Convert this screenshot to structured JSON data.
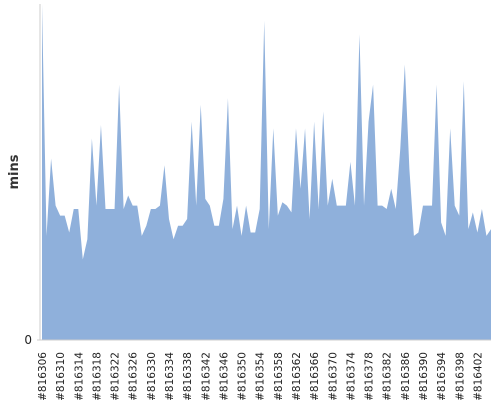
{
  "chart_data": {
    "type": "area",
    "ylabel": "mins",
    "color": "#8fb0db",
    "categories": [
      "#816306",
      null,
      null,
      null,
      "#816310",
      null,
      null,
      null,
      "#816314",
      null,
      null,
      null,
      "#816318",
      null,
      null,
      null,
      "#816322",
      null,
      null,
      null,
      "#816326",
      null,
      null,
      null,
      "#816330",
      null,
      null,
      null,
      "#816334",
      null,
      null,
      null,
      "#816338",
      null,
      null,
      null,
      "#816342",
      null,
      null,
      null,
      "#816346",
      null,
      null,
      null,
      "#816350",
      null,
      null,
      null,
      "#816354",
      null,
      null,
      null,
      "#816358",
      null,
      null,
      null,
      "#816362",
      null,
      null,
      null,
      "#816366",
      null,
      null,
      null,
      "#816370",
      null,
      null,
      null,
      "#816374",
      null,
      null,
      null,
      "#816378",
      null,
      null,
      null,
      "#816382",
      null,
      null,
      null,
      "#816386",
      null,
      null,
      null,
      "#816390",
      null,
      null,
      null,
      "#816394",
      null,
      null,
      null,
      "#816398",
      null,
      null,
      null,
      "#816402",
      null,
      null,
      null
    ],
    "values": [
      100,
      31,
      54,
      40,
      37,
      37,
      32,
      39,
      39,
      24,
      30,
      60,
      40,
      64,
      39,
      39,
      39,
      76,
      39,
      43,
      40,
      40,
      31,
      34,
      39,
      39,
      40,
      52,
      36,
      30,
      34,
      34,
      36,
      65,
      40,
      70,
      42,
      40,
      34,
      34,
      42,
      72,
      33,
      40,
      31,
      40,
      32,
      32,
      39,
      95,
      33,
      63,
      37,
      41,
      40,
      38,
      63,
      45,
      63,
      36,
      65,
      39,
      68,
      40,
      48,
      40,
      40,
      40,
      53,
      40,
      91,
      40,
      65,
      76,
      40,
      40,
      39,
      45,
      39,
      57,
      82,
      51,
      31,
      32,
      40,
      40,
      40,
      76,
      35,
      31,
      63,
      40,
      37,
      77,
      33,
      38,
      32,
      39,
      31,
      33
    ],
    "ylim": [
      0,
      100
    ],
    "yticks": [
      0
    ]
  }
}
